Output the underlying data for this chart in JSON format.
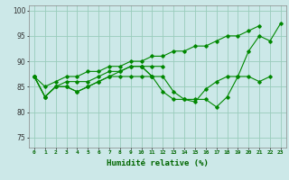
{
  "title": "",
  "xlabel": "Humidité relative (%)",
  "ylabel": "",
  "background_color": "#cce8e8",
  "grid_color": "#99ccbb",
  "line_color": "#008800",
  "xlim": [
    -0.5,
    23.5
  ],
  "ylim": [
    73,
    101
  ],
  "yticks": [
    75,
    80,
    85,
    90,
    95,
    100
  ],
  "xticks": [
    0,
    1,
    2,
    3,
    4,
    5,
    6,
    7,
    8,
    9,
    10,
    11,
    12,
    13,
    14,
    15,
    16,
    17,
    18,
    19,
    20,
    21,
    22,
    23
  ],
  "series": [
    [
      87,
      83,
      85,
      85,
      84,
      85,
      86,
      87,
      87,
      87,
      87,
      87,
      87,
      84,
      82.5,
      82.5,
      82.5,
      81,
      83,
      87,
      87,
      86,
      87,
      null
    ],
    [
      87,
      83,
      85,
      86,
      86,
      86,
      87,
      88,
      88,
      89,
      89,
      89,
      89,
      null,
      null,
      null,
      null,
      null,
      null,
      null,
      null,
      null,
      null,
      null
    ],
    [
      87,
      83,
      85,
      85,
      84,
      85,
      86,
      87,
      88,
      89,
      89,
      87,
      null,
      null,
      null,
      null,
      null,
      null,
      null,
      null,
      null,
      null,
      null,
      null
    ],
    [
      87,
      85,
      86,
      87,
      87,
      88,
      88,
      89,
      89,
      90,
      90,
      91,
      91,
      92,
      92,
      93,
      93,
      94,
      95,
      95,
      96,
      97,
      null,
      null
    ],
    [
      null,
      null,
      null,
      null,
      null,
      null,
      null,
      null,
      null,
      null,
      89,
      87,
      84,
      82.5,
      82.5,
      82,
      84.5,
      86,
      87,
      87,
      92,
      95,
      94,
      97.5
    ]
  ],
  "xlabel_fontsize": 6.5,
  "xlabel_color": "#006600",
  "xtick_fontsize": 4.5,
  "ytick_fontsize": 5.5
}
